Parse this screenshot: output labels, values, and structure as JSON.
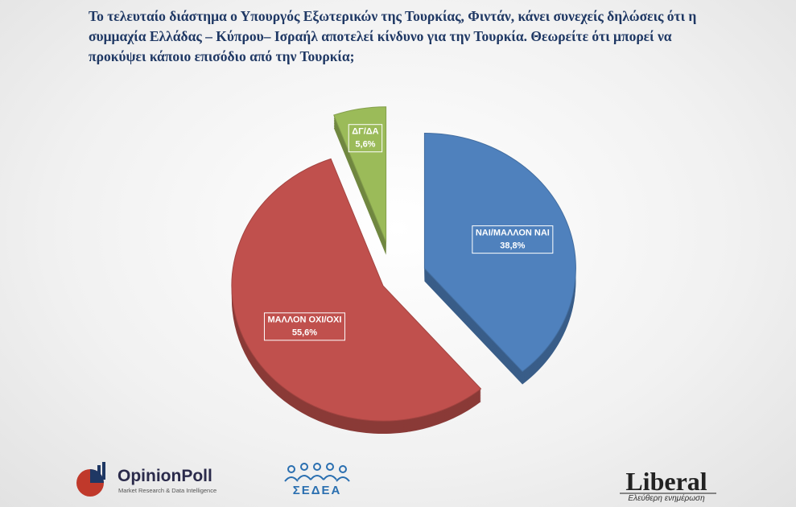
{
  "chart_data": {
    "type": "pie",
    "title": "Το τελευταίο διάστημα ο Υπουργός Εξωτερικών της Τουρκίας, Φιντάν, κάνει συνεχείς δηλώσεις ότι η συμμαχία Ελλάδας – Κύπρου– Ισραήλ αποτελεί κίνδυνο για την Τουρκία. Θεωρείτε ότι μπορεί να προκύψει κάποιο επισόδιο από την Τουρκία;",
    "categories": [
      "ΝΑΙ/ΜΑΛΛΟΝ ΝΑΙ",
      "ΜΑΛΛΟΝ ΟΧΙ/ΟΧΙ",
      "ΔΓ/ΔΑ"
    ],
    "values": [
      38.8,
      55.6,
      5.6
    ],
    "value_labels": [
      "38,8%",
      "55,6%",
      "5,6%"
    ],
    "colors": [
      "#4f81bd",
      "#c0504d",
      "#9bbb59"
    ]
  },
  "logos": {
    "opinionpoll": "OpinionPoll",
    "opinionpoll_tagline": "Market Research & Data Intelligence",
    "sedea": "ΣΕΔΕΑ",
    "liberal": "Liberal",
    "liberal_tagline": "Ελεύθερη ενημέρωση"
  }
}
